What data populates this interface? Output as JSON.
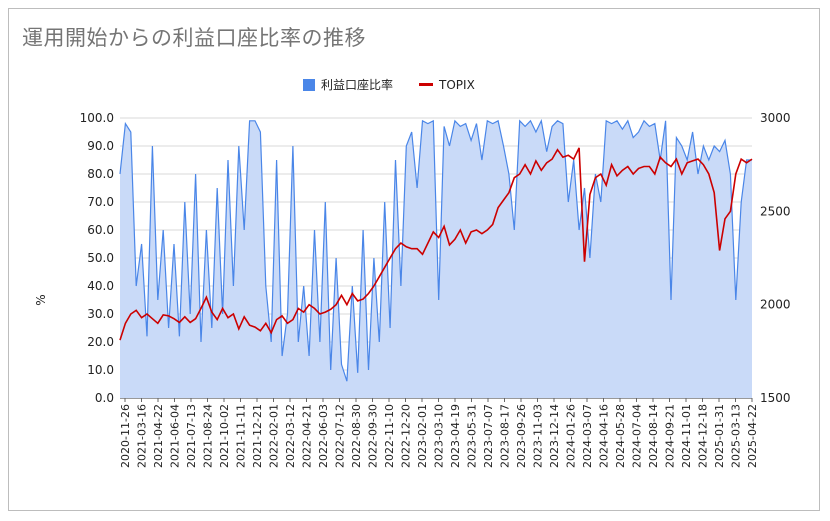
{
  "chart_data": {
    "type": "line",
    "title": "運用開始からの利益口座比率の推移",
    "ylabel": "%",
    "ylim": [
      0,
      100
    ],
    "y2lim": [
      1500,
      3000
    ],
    "y_ticks": [
      "0.0",
      "10.0",
      "20.0",
      "30.0",
      "40.0",
      "50.0",
      "60.0",
      "70.0",
      "80.0",
      "90.0",
      "100.0"
    ],
    "y2_ticks": [
      "1500",
      "2000",
      "2500",
      "3000"
    ],
    "x_ticks": [
      "2020-11-26",
      "2021-03-16",
      "2021-04-22",
      "2021-06-04",
      "2021-07-13",
      "2021-08-24",
      "2021-10-02",
      "2021-11-11",
      "2021-12-21",
      "2022-02-01",
      "2022-03-12",
      "2022-04-21",
      "2022-06-03",
      "2022-07-12",
      "2022-08-30",
      "2022-09-30",
      "2022-11-10",
      "2022-12-20",
      "2023-02-01",
      "2023-03-10",
      "2023-04-19",
      "2023-05-31",
      "2023-07-07",
      "2023-08-17",
      "2023-09-26",
      "2023-11-03",
      "2023-12-14",
      "2024-01-26",
      "2024-03-07",
      "2024-04-16",
      "2024-05-28",
      "2024-07-04",
      "2024-08-14",
      "2024-09-21",
      "2024-11-01",
      "2024-12-18",
      "2025-01-31",
      "2025-03-13",
      "2025-04-22"
    ],
    "series": [
      {
        "name": "利益口座比率",
        "axis": "left",
        "type": "area",
        "color": "#4a86e8",
        "values": [
          80,
          98,
          95,
          40,
          55,
          22,
          90,
          35,
          60,
          25,
          55,
          22,
          70,
          30,
          80,
          20,
          60,
          25,
          75,
          30,
          85,
          40,
          90,
          60,
          99,
          99,
          95,
          40,
          20,
          85,
          15,
          30,
          90,
          20,
          40,
          15,
          60,
          20,
          70,
          10,
          50,
          12,
          6,
          40,
          9,
          60,
          10,
          50,
          20,
          70,
          25,
          85,
          40,
          90,
          95,
          75,
          99,
          98,
          99,
          35,
          97,
          90,
          99,
          97,
          98,
          92,
          98,
          85,
          99,
          98,
          99,
          90,
          80,
          60,
          99,
          97,
          99,
          95,
          99,
          88,
          97,
          99,
          98,
          70,
          85,
          60,
          75,
          50,
          80,
          70,
          99,
          98,
          99,
          96,
          99,
          93,
          95,
          99,
          97,
          98,
          85,
          99,
          35,
          93,
          90,
          85,
          95,
          80,
          90,
          85,
          90,
          88,
          92,
          80,
          35,
          70,
          85,
          85
        ]
      },
      {
        "name": "TOPIX",
        "axis": "right",
        "type": "line",
        "color": "#cc0000",
        "values": [
          1810,
          1900,
          1950,
          1970,
          1930,
          1950,
          1925,
          1900,
          1945,
          1940,
          1925,
          1905,
          1935,
          1905,
          1925,
          1980,
          2040,
          1960,
          1920,
          1980,
          1930,
          1950,
          1870,
          1935,
          1890,
          1880,
          1860,
          1900,
          1850,
          1920,
          1940,
          1900,
          1920,
          1980,
          1960,
          2000,
          1980,
          1950,
          1960,
          1975,
          2000,
          2050,
          2000,
          2060,
          2020,
          2030,
          2060,
          2100,
          2150,
          2200,
          2250,
          2300,
          2330,
          2310,
          2300,
          2300,
          2270,
          2330,
          2390,
          2360,
          2420,
          2320,
          2350,
          2400,
          2330,
          2390,
          2400,
          2380,
          2400,
          2430,
          2520,
          2560,
          2600,
          2680,
          2700,
          2750,
          2700,
          2770,
          2720,
          2760,
          2780,
          2830,
          2790,
          2800,
          2780,
          2840,
          2230,
          2590,
          2680,
          2700,
          2640,
          2750,
          2690,
          2720,
          2740,
          2700,
          2730,
          2740,
          2740,
          2700,
          2790,
          2760,
          2740,
          2780,
          2700,
          2760,
          2770,
          2780,
          2750,
          2700,
          2600,
          2290,
          2460,
          2500,
          2700,
          2780,
          2760,
          2780
        ]
      }
    ],
    "legend": "top",
    "grid": true
  }
}
